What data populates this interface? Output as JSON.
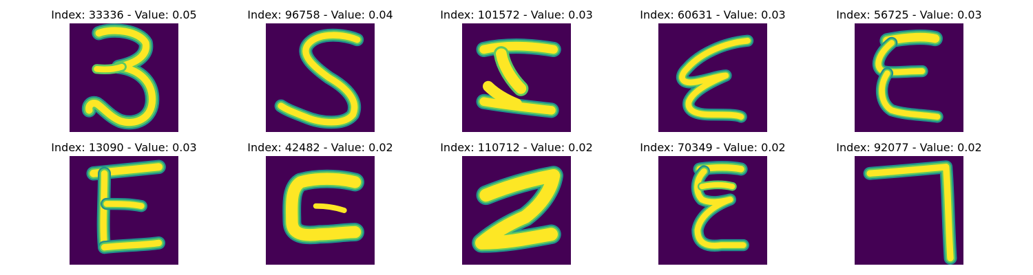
{
  "colors": {
    "background": "#440154",
    "stroke_core": "#fde725",
    "stroke_mid": "#5ec962",
    "stroke_edge": "#21918c"
  },
  "grid": [
    {
      "index": "33336",
      "value": "0.05",
      "title": "Index: 33336 - Value: 0.05",
      "glyph": "3"
    },
    {
      "index": "96758",
      "value": "0.04",
      "title": "Index: 96758 - Value: 0.04",
      "glyph": "S"
    },
    {
      "index": "101572",
      "value": "0.03",
      "title": "Index: 101572 - Value: 0.03",
      "glyph": "Ξ-like"
    },
    {
      "index": "60631",
      "value": "0.03",
      "title": "Index: 60631 - Value: 0.03",
      "glyph": "ε-like"
    },
    {
      "index": "56725",
      "value": "0.03",
      "title": "Index: 56725 - Value: 0.03",
      "glyph": "E"
    },
    {
      "index": "13090",
      "value": "0.03",
      "title": "Index: 13090 - Value: 0.03",
      "glyph": "E"
    },
    {
      "index": "42482",
      "value": "0.02",
      "title": "Index: 42482 - Value: 0.02",
      "glyph": "C-like"
    },
    {
      "index": "110712",
      "value": "0.02",
      "title": "Index: 110712 - Value: 0.02",
      "glyph": "Z-like"
    },
    {
      "index": "70349",
      "value": "0.02",
      "title": "Index: 70349 - Value: 0.02",
      "glyph": "ε-like"
    },
    {
      "index": "92077",
      "value": "0.02",
      "title": "Index: 92077 - Value: 0.02",
      "glyph": "7"
    }
  ]
}
